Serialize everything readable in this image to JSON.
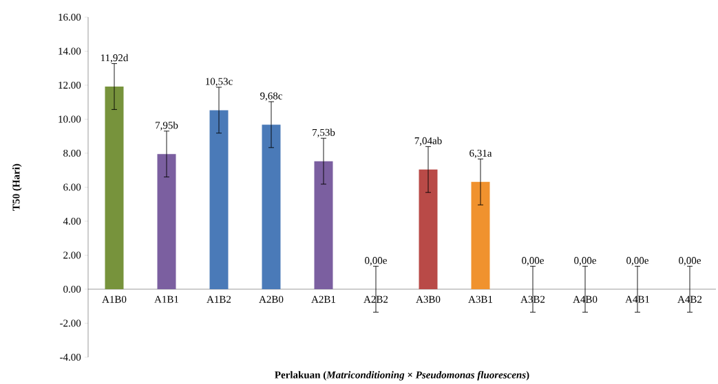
{
  "chart_data": {
    "type": "bar",
    "xlabel": "Perlakuan  (*Matriconditioning* × *Pseudomonas fluorescens*)",
    "ylabel": "T50 (Hari)",
    "categories": [
      "A1B0",
      "A1B1",
      "A1B2",
      "A2B0",
      "A2B1",
      "A2B2",
      "A3B0",
      "A3B1",
      "A3B2",
      "A4B0",
      "A4B1",
      "A4B2"
    ],
    "values": [
      11.92,
      7.95,
      10.53,
      9.68,
      7.53,
      0,
      7.04,
      6.31,
      0,
      0,
      0,
      0
    ],
    "colors": [
      "#77933c",
      "#7b5fa0",
      "#4a7ab8",
      "#4a7ab8",
      "#7b5fa0",
      "#7b5fa0",
      "#b94a47",
      "#f0922e",
      "#7b5fa0",
      "#7b5fa0",
      "#7b5fa0",
      "#7b5fa0"
    ],
    "errors": [
      1.35,
      1.35,
      1.35,
      1.35,
      1.35,
      1.35,
      1.35,
      1.35,
      1.35,
      1.35,
      1.35,
      1.35
    ],
    "value_labels": [
      "11,92d",
      "7,95b",
      "10,53c",
      "9,68c",
      "7,53b",
      "0,00e",
      "7,04ab",
      "6,31a",
      "0,00e",
      "0,00e",
      "0,00e",
      "0,00e"
    ],
    "ylim": [
      -4,
      16
    ],
    "yticks": [
      {
        "value": -4,
        "label": "-4.00"
      },
      {
        "value": -2,
        "label": "-2.00"
      },
      {
        "value": 0,
        "label": "0.00"
      },
      {
        "value": 2,
        "label": "2.00"
      },
      {
        "value": 4,
        "label": "4.00"
      },
      {
        "value": 6,
        "label": "6.00"
      },
      {
        "value": 8,
        "label": "8.00"
      },
      {
        "value": 10,
        "label": "10.00"
      },
      {
        "value": 12,
        "label": "12.00"
      },
      {
        "value": 14,
        "label": "14.00"
      },
      {
        "value": 16,
        "label": "16.00"
      }
    ]
  }
}
